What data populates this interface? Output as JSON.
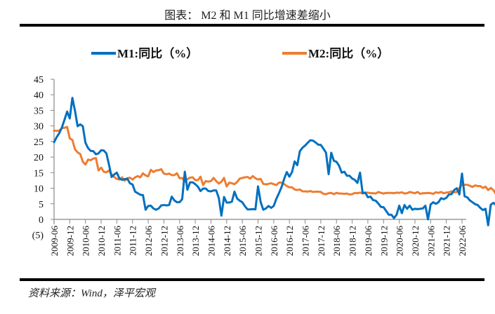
{
  "header": {
    "title": "图表： M2 和 M1 同比增速差缩小"
  },
  "footer": {
    "source": "资料来源：Wind，泽平宏观"
  },
  "chart_data": {
    "type": "line",
    "title": "图表： M2 和 M1 同比增速差缩小",
    "xlabel": "",
    "ylabel": "",
    "ylim": [
      -5,
      45
    ],
    "yticks": [
      45,
      40,
      35,
      30,
      25,
      20,
      15,
      10,
      5,
      0,
      -5
    ],
    "ytick_labels": [
      "45",
      "40",
      "35",
      "30",
      "25",
      "20",
      "15",
      "10",
      "5",
      "0",
      "(5)"
    ],
    "negative_label_color": "#e0001b",
    "grid": false,
    "legend_position": "top",
    "x_start": "2009-06",
    "x_end": "2022-06",
    "x_frequency": "monthly",
    "xtick_labels": [
      "2009-06",
      "2009-12",
      "2010-06",
      "2010-12",
      "2011-06",
      "2011-12",
      "2012-06",
      "2012-12",
      "2013-06",
      "2013-12",
      "2014-06",
      "2014-12",
      "2015-06",
      "2015-12",
      "2016-06",
      "2016-12",
      "2017-06",
      "2017-12",
      "2018-06",
      "2018-12",
      "2019-06",
      "2019-12",
      "2020-06",
      "2020-12",
      "2021-06",
      "2021-12",
      "2022-06"
    ],
    "series": [
      {
        "name": "M1:同比（%）",
        "color": "#0070c0",
        "values": [
          24.8,
          26.4,
          27.7,
          29.5,
          32.0,
          34.6,
          32.4,
          39.0,
          34.9,
          29.9,
          30.5,
          29.9,
          24.6,
          22.9,
          22.0,
          21.9,
          20.9,
          21.2,
          22.2,
          22.1,
          21.2,
          17.6,
          13.6,
          14.4,
          15.0,
          13.1,
          12.7,
          12.9,
          13.1,
          11.6,
          11.2,
          8.9,
          8.4,
          7.9,
          7.8,
          3.1,
          4.3,
          4.4,
          3.5,
          3.1,
          3.5,
          4.5,
          4.6,
          4.5,
          4.6,
          7.3,
          6.1,
          5.5,
          5.5,
          6.5,
          15.3,
          9.5,
          11.9,
          11.9,
          11.3,
          10.5,
          9.1,
          9.9,
          9.9,
          9.1,
          9.0,
          9.3,
          9.3,
          6.9,
          1.2,
          7.2,
          5.4,
          5.4,
          5.7,
          8.9,
          6.7,
          6.0,
          5.5,
          4.2,
          3.2,
          3.2,
          3.3,
          3.2,
          10.6,
          5.6,
          3.1,
          3.5,
          4.3,
          3.7,
          4.3,
          6.6,
          8.4,
          10.4,
          13.0,
          15.2,
          13.7,
          15.2,
          18.6,
          17.4,
          21.9,
          23.0,
          23.7,
          24.6,
          25.4,
          25.3,
          24.7,
          24.0,
          23.9,
          22.7,
          21.4,
          14.5,
          21.4,
          18.8,
          18.5,
          17.2,
          15.0,
          15.3,
          14.0,
          14.0,
          13.1,
          12.7,
          11.7,
          15.0,
          8.5,
          8.6,
          7.1,
          7.3,
          6.2,
          6.0,
          5.1,
          4.0,
          3.9,
          2.7,
          1.5,
          1.5,
          0.4,
          1.5,
          4.4,
          2.0,
          4.6,
          3.4,
          4.4,
          3.1,
          3.4,
          3.3,
          3.4,
          3.5,
          4.4,
          0.0,
          4.8,
          5.5,
          5.0,
          5.5,
          6.8,
          6.5,
          6.9,
          8.0,
          8.1,
          9.4,
          10.0,
          8.0,
          14.7,
          7.4,
          7.1,
          6.1,
          5.5,
          4.9,
          4.6,
          3.7,
          3.0,
          3.4,
          -1.9,
          4.7,
          5.3,
          4.6,
          5.8
        ]
      },
      {
        "name": "M2:同比（%）",
        "color": "#ed7d31",
        "values": [
          28.5,
          28.4,
          28.5,
          29.3,
          29.4,
          29.7,
          26.0,
          25.5,
          22.5,
          21.5,
          21.0,
          18.5,
          17.6,
          19.2,
          19.0,
          19.5,
          19.7,
          15.7,
          16.6,
          15.3,
          15.1,
          15.7,
          14.4,
          13.6,
          13.0,
          12.8,
          13.5,
          12.4,
          13.2,
          13.4,
          12.8,
          13.5,
          13.9,
          13.5,
          14.8,
          14.1,
          13.8,
          15.9,
          15.2,
          15.7,
          15.8,
          16.1,
          14.7,
          14.5,
          14.7,
          14.2,
          14.2,
          14.8,
          13.2,
          13.3,
          12.1,
          12.9,
          13.4,
          13.5,
          12.6,
          12.6,
          13.7,
          11.0,
          12.3,
          12.1,
          12.3,
          13.3,
          12.3,
          11.5,
          12.1,
          13.3,
          10.6,
          11.8,
          11.6,
          11.3,
          12.0,
          13.1,
          13.3,
          13.5,
          13.6,
          13.1,
          13.9,
          13.2,
          12.8,
          13.0,
          11.4,
          11.2,
          11.4,
          11.6,
          11.3,
          11.0,
          11.8,
          11.8,
          11.3,
          10.7,
          10.3,
          10.3,
          9.6,
          9.4,
          9.6,
          9.0,
          9.0,
          8.9,
          9.1,
          8.8,
          8.9,
          8.9,
          8.8,
          8.2,
          8.1,
          8.4,
          8.5,
          8.1,
          8.5,
          8.3,
          8.3,
          8.2,
          8.3,
          8.0,
          8.1,
          8.5,
          8.4,
          8.6,
          8.3,
          8.5,
          8.6,
          8.4,
          8.4,
          8.3,
          8.8,
          8.5,
          8.3,
          8.5,
          8.5,
          8.5,
          8.4,
          8.6,
          8.5,
          8.7,
          8.3,
          8.4,
          8.8,
          8.6,
          8.4,
          8.8,
          8.2,
          8.4,
          8.4,
          8.5,
          8.4,
          8.2,
          8.7,
          8.5,
          8.8,
          8.4,
          8.6,
          8.7,
          9.0,
          8.7,
          8.8,
          10.1,
          11.1,
          11.1,
          11.1,
          10.8,
          10.4,
          10.9,
          10.7,
          10.7,
          10.1,
          10.5,
          9.4,
          10.1,
          9.4,
          8.1,
          8.3,
          8.6,
          8.8,
          8.3,
          8.2,
          8.3,
          8.2,
          8.7,
          8.5,
          9.0,
          9.8,
          9.2,
          9.7,
          10.5,
          11.1,
          11.3
        ]
      }
    ]
  }
}
